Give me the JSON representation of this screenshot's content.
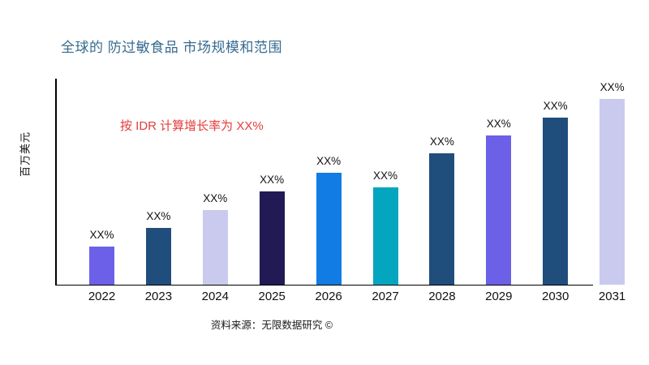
{
  "page": {
    "title": "全球的 防过敏食品 市场规模和范围",
    "title_color": "#376B90",
    "annotation": {
      "text": "按 IDR 计算增长率为 XX%",
      "color": "#E53B3B"
    },
    "footer": "资料来源：无限数据研究 ©"
  },
  "chart_data": {
    "type": "bar",
    "title": "全球的 防过敏食品 市场规模和范围",
    "xlabel": "",
    "ylabel": "百万美元",
    "categories": [
      "2022",
      "2023",
      "2024",
      "2025",
      "2026",
      "2027",
      "2028",
      "2029",
      "2030",
      "2031"
    ],
    "values_relative": [
      20.5,
      30.6,
      40.2,
      50.2,
      60.3,
      52.4,
      70.7,
      80.3,
      90.0,
      100.0
    ],
    "value_labels": [
      "XX%",
      "XX%",
      "XX%",
      "XX%",
      "XX%",
      "XX%",
      "XX%",
      "XX%",
      "XX%",
      "XX%"
    ],
    "bar_colors": [
      "#6C60E8",
      "#1F4E7D",
      "#C9CAEE",
      "#221A55",
      "#117CE3",
      "#04A6BF",
      "#1F4E7D",
      "#6C60E8",
      "#1F4E7D",
      "#C9CAEE"
    ],
    "annotation": "按 IDR 计算增长率为 XX%",
    "axis_color": "#000000",
    "grid": false,
    "legend": false,
    "ylim_note": "y-axis has no tick labels; values shown as XX% placeholders"
  }
}
